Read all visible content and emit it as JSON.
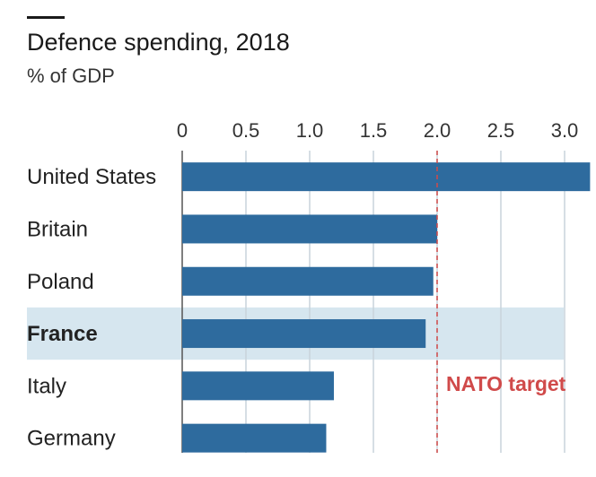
{
  "chart_data": {
    "type": "bar",
    "orientation": "horizontal",
    "title": "Defence spending, 2018",
    "subtitle": "% of GDP",
    "xlabel": "",
    "ylabel": "",
    "categories": [
      "United States",
      "Britain",
      "Poland",
      "France",
      "Italy",
      "Germany"
    ],
    "values": [
      3.2,
      2.0,
      1.97,
      1.91,
      1.19,
      1.13
    ],
    "highlight": "France",
    "xlim": [
      0,
      3.0
    ],
    "xticks": [
      0,
      0.5,
      1.0,
      1.5,
      2.0,
      2.5,
      3.0
    ],
    "xtick_labels": [
      "0",
      "0.5",
      "1.0",
      "1.5",
      "2.0",
      "2.5",
      "3.0"
    ],
    "grid": "vertical",
    "axis_position": "top",
    "reference_line": {
      "value": 2.0,
      "label": "NATO target"
    },
    "colors": {
      "bar": "#2e6b9e",
      "highlight_band": "#d6e6ef",
      "reference": "#d04a4a",
      "grid": "#c9d3db",
      "top_rule": "#1a1a1a"
    }
  }
}
